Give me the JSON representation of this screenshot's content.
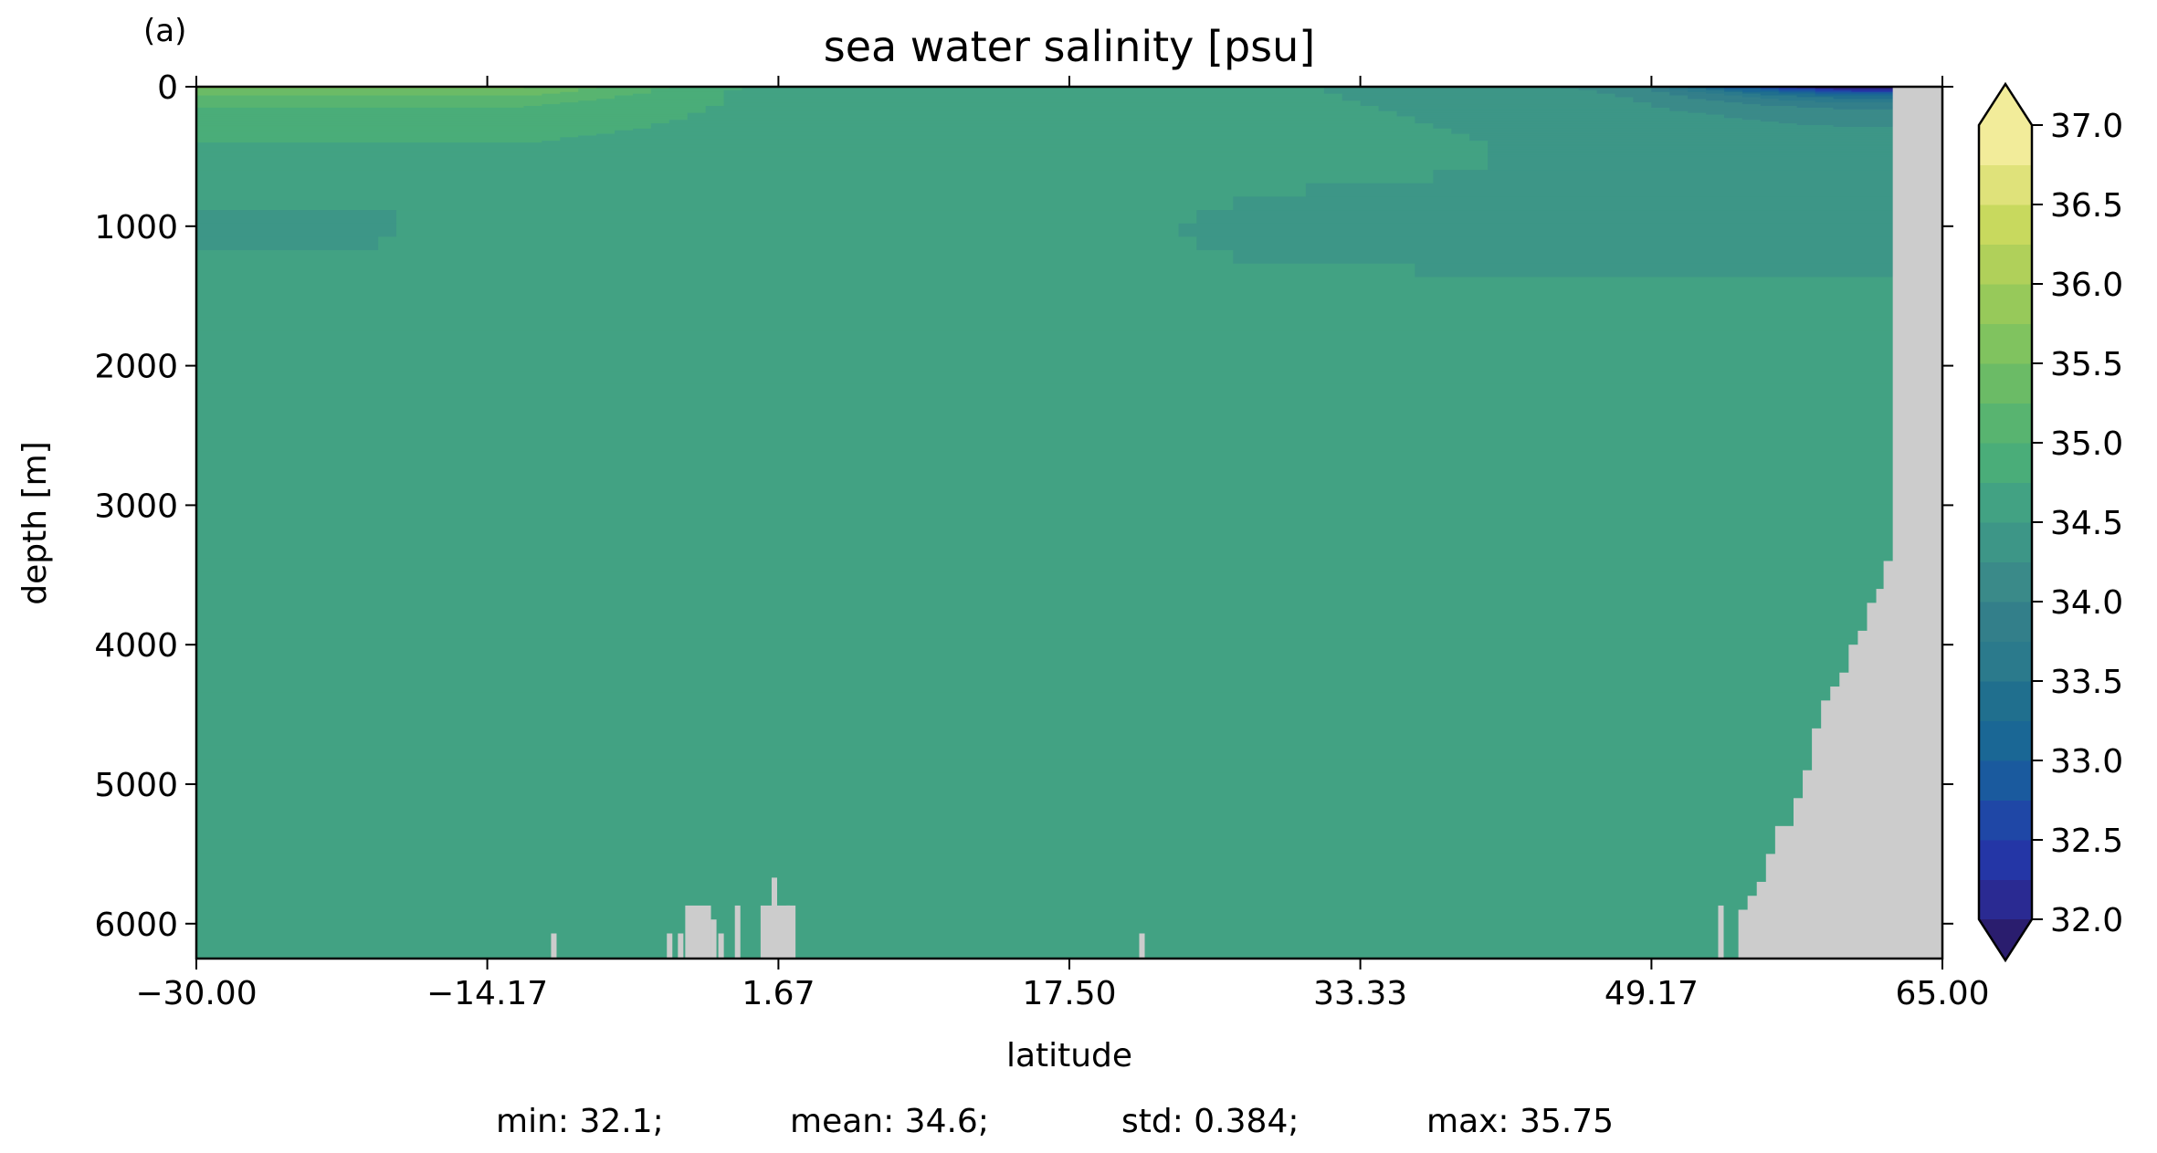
{
  "panel_label": "(a)",
  "colors": {
    "land": "#cccccc",
    "levels": [
      "#2a1d6e",
      "#2a2a92",
      "#2436a6",
      "#1f47a6",
      "#1a5a9e",
      "#1a6795",
      "#206f8e",
      "#2b7a8c",
      "#337f8a",
      "#3a8a89",
      "#3d9687",
      "#42a283",
      "#4aad79",
      "#58b470",
      "#6bbb66",
      "#80c35f",
      "#97c95a",
      "#b0d05a",
      "#c8d95e",
      "#dfe27a",
      "#f2ec9a"
    ]
  },
  "chart_data": {
    "type": "heatmap",
    "title": "sea water salinity [psu]",
    "xlabel": "latitude",
    "ylabel": "depth [m]",
    "xlim": [
      -30.0,
      65.0
    ],
    "ylim": [
      6250,
      0
    ],
    "xticks": [
      -30.0,
      -14.17,
      1.67,
      17.5,
      33.33,
      49.17,
      65.0
    ],
    "xtick_labels": [
      "−30.00",
      "−14.17",
      "1.67",
      "17.50",
      "33.33",
      "49.17",
      "65.00"
    ],
    "yticks": [
      0,
      1000,
      2000,
      3000,
      4000,
      5000,
      6000
    ],
    "ytick_labels": [
      "0",
      "1000",
      "2000",
      "3000",
      "4000",
      "5000",
      "6000"
    ],
    "colorbar": {
      "min": 32.0,
      "max": 37.0,
      "step": 0.25,
      "extend": "both",
      "ticks": [
        32.0,
        32.5,
        33.0,
        33.5,
        34.0,
        34.5,
        35.0,
        35.5,
        36.0,
        36.5,
        37.0
      ],
      "tick_labels": [
        "32.0",
        "32.5",
        "33.0",
        "33.5",
        "34.0",
        "34.5",
        "35.0",
        "35.5",
        "36.0",
        "36.5",
        "37.0"
      ]
    },
    "field_description": {
      "deep_water_salinity": 34.7,
      "surface_south_salinity": 35.6,
      "surface_north_salinity": 32.1
    }
  },
  "stats": {
    "min": "min: 32.1;",
    "mean": "mean: 34.6;",
    "std": "std: 0.384;",
    "max": "max: 35.75"
  }
}
